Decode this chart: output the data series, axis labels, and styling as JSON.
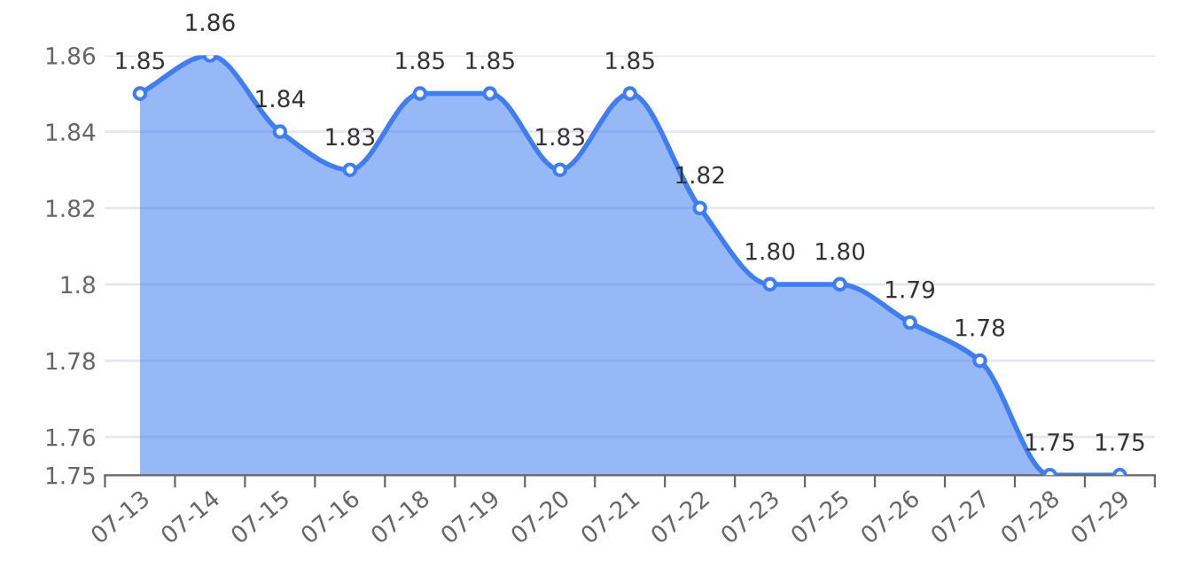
{
  "chart_data": {
    "type": "area",
    "categories": [
      "07-13",
      "07-14",
      "07-15",
      "07-16",
      "07-18",
      "07-19",
      "07-20",
      "07-21",
      "07-22",
      "07-23",
      "07-25",
      "07-26",
      "07-27",
      "07-28",
      "07-29"
    ],
    "series": [
      {
        "color": "#3f7df0",
        "values": [
          1.85,
          1.86,
          1.84,
          1.83,
          1.85,
          1.85,
          1.83,
          1.85,
          1.82,
          1.8,
          1.8,
          1.79,
          1.78,
          1.75,
          1.75
        ],
        "value_labels": [
          "1.85",
          "1.86",
          "1.84",
          "1.83",
          "1.85",
          "1.85",
          "1.83",
          "1.85",
          "1.82",
          "1.80",
          "1.80",
          "1.79",
          "1.78",
          "1.75",
          "1.75"
        ]
      }
    ],
    "ylim": [
      1.75,
      1.86
    ],
    "yticks": [
      1.75,
      1.76,
      1.78,
      1.8,
      1.82,
      1.84,
      1.86
    ],
    "grid": "y",
    "marker": "circle",
    "line_style": "solid"
  }
}
